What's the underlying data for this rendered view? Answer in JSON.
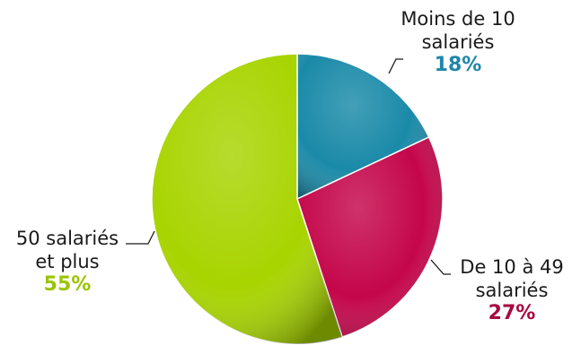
{
  "chart_data": {
    "type": "pie",
    "title": "",
    "slices": [
      {
        "label_line1": "Moins de 10",
        "label_line2": "salariés",
        "value": 18,
        "value_text": "18%",
        "color": "#1a8aa8",
        "text_color": "#1f86a8"
      },
      {
        "label_line1": "De 10 à 49",
        "label_line2": "salariés",
        "value": 27,
        "value_text": "27%",
        "color": "#c4064a",
        "text_color": "#a8073f"
      },
      {
        "label_line1": "50 salariés",
        "label_line2": "et plus",
        "value": 55,
        "value_text": "55%",
        "color": "#a8d400",
        "text_color": "#9bc400"
      }
    ],
    "start_angle_deg": 0,
    "direction": "clockwise",
    "legend": "none"
  }
}
